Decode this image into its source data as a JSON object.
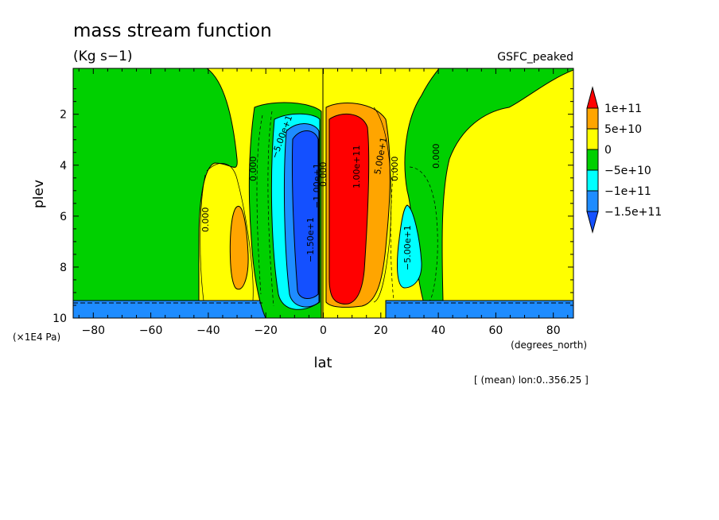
{
  "chart_data": {
    "type": "heatmap",
    "title": "mass stream function",
    "units": "(Kg s−1)",
    "experiment": "GSFC_peaked",
    "xlabel": "lat",
    "xunits": "(degrees_north)",
    "ylabel": "plev",
    "yunits": "(×1E4 Pa)",
    "footer": "[ (mean) lon:0..356.25 ]",
    "xlim": [
      -87,
      87
    ],
    "ylim": [
      10,
      0.2
    ],
    "xticks": [
      -80,
      -60,
      -40,
      -20,
      0,
      20,
      40,
      60,
      80
    ],
    "xtick_labels": [
      "−80",
      "−60",
      "−40",
      "−20",
      "0",
      "20",
      "40",
      "60",
      "80"
    ],
    "yticks": [
      2,
      4,
      6,
      8,
      10
    ],
    "ytick_labels": [
      "2",
      "4",
      "6",
      "8",
      "10"
    ],
    "colorbar": {
      "levels": [
        "1e+11",
        "5e+10",
        "0",
        "−5e+10",
        "−1e+11",
        "−1.5e+11"
      ],
      "colors": [
        "#ff0000",
        "#ffa500",
        "#ffff00",
        "#00d000",
        "#00ffff",
        "#1e8cff",
        "#1450ff"
      ]
    },
    "contour_labels": [
      "0.000",
      "0.000",
      "0.000",
      "0.000",
      "0.000",
      "−5.00e+1",
      "−1.50e+1",
      "−1.00e+1",
      "1.00e+11",
      "5.00e+1",
      "−5.00e+1"
    ],
    "fields": {
      "north_cell_peak": 120000000000.0,
      "south_cell_min": -160000000000.0,
      "subtropic_south_peak": 50000000000.0,
      "subtropic_north_min": -100000000000.0,
      "polar_south": -50000000000.0,
      "polar_north": -50000000000.0,
      "surface_layer": -160000000000.0
    }
  }
}
